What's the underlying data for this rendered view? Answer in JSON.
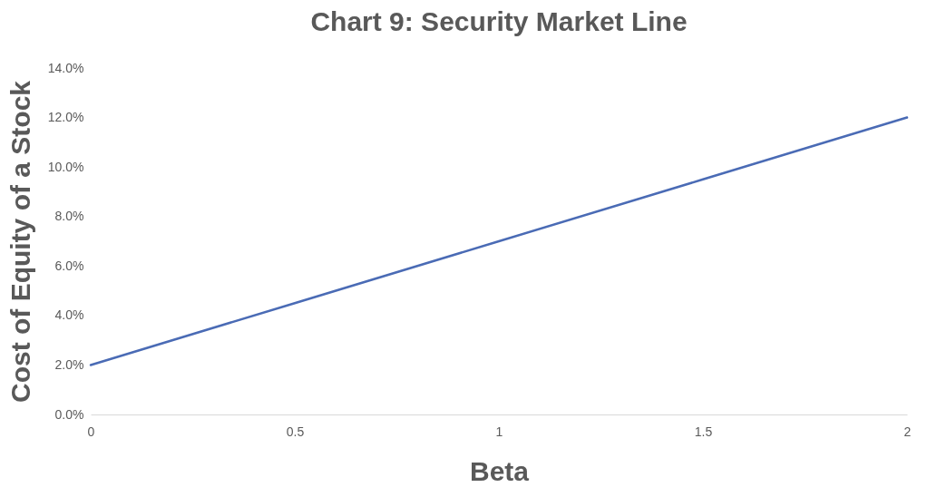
{
  "chart_data": {
    "type": "line",
    "title": "Chart 9:  Security Market Line",
    "xlabel": "Beta",
    "ylabel": "Cost of Equity of a Stock",
    "x": [
      0,
      0.5,
      1,
      1.5,
      2
    ],
    "series": [
      {
        "color": "#4a6bb5",
        "values": [
          2.0,
          4.5,
          7.0,
          9.5,
          12.0
        ]
      }
    ],
    "xlim": [
      0,
      2
    ],
    "xticks": [
      0,
      0.5,
      1,
      1.5,
      2
    ],
    "ylim": [
      0,
      14
    ],
    "yticks": [
      {
        "value": 0,
        "label": "0.0%"
      },
      {
        "value": 2,
        "label": "2.0%"
      },
      {
        "value": 4,
        "label": "4.0%"
      },
      {
        "value": 6,
        "label": "6.0%"
      },
      {
        "value": 8,
        "label": "8.0%"
      },
      {
        "value": 10,
        "label": "10.0%"
      },
      {
        "value": 12,
        "label": "12.0%"
      },
      {
        "value": 14,
        "label": "14.0%"
      }
    ],
    "grid": false,
    "marker": "none",
    "line_style": "solid"
  }
}
